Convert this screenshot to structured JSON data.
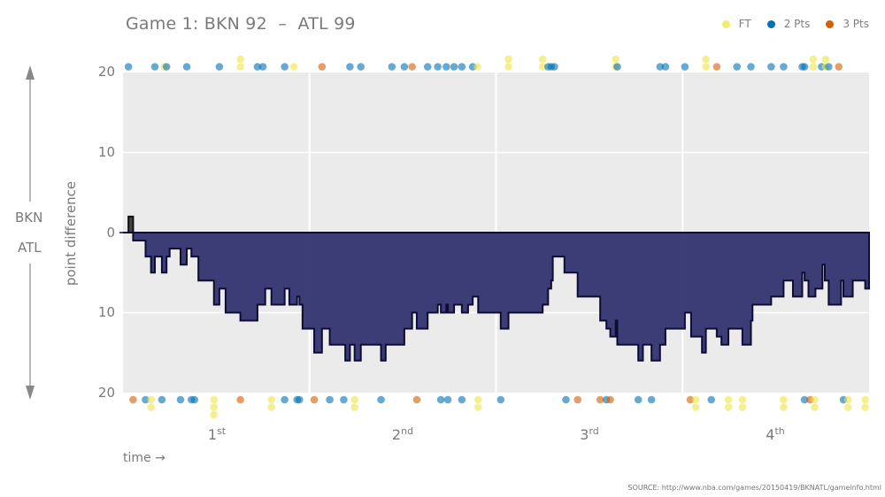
{
  "title": "Game 1: BKN 92  –  ATL 99",
  "legend": [
    {
      "label": "FT",
      "color": "#f0e442"
    },
    {
      "label": "2 Pts",
      "color": "#0072b2"
    },
    {
      "label": "3 Pts",
      "color": "#d55e00"
    }
  ],
  "axis": {
    "ylabel": "point difference",
    "yticks": [
      "20",
      "10",
      "0",
      "10",
      "20"
    ],
    "team_top": "BKN",
    "team_bottom": "ATL",
    "xlabel": "time →",
    "quarters": [
      {
        "num": "1",
        "suffix": "st"
      },
      {
        "num": "2",
        "suffix": "nd"
      },
      {
        "num": "3",
        "suffix": "rd"
      },
      {
        "num": "4",
        "suffix": "th"
      }
    ]
  },
  "source": "SOURCE: http://www.nba.com/games/20150419/BKNATL/gameinfo.html",
  "colors": {
    "plot_bg": "#ebebeb",
    "grid": "#ffffff",
    "area_atl": "#2d2d6b",
    "area_outline": "#0d0d33",
    "area_bkn": "#444444",
    "ft": "#f0e442",
    "two": "#0072b2",
    "three": "#d55e00"
  },
  "chart_data": {
    "type": "area",
    "title": "Game 1: BKN 92 – ATL 99",
    "xlabel": "time",
    "ylabel": "point difference (BKN positive, ATL negative)",
    "x_unit": "game minutes (0–48)",
    "ylim": [
      -20,
      20
    ],
    "categories": [
      "1st",
      "2nd",
      "3rd",
      "4th"
    ],
    "legend": [
      "FT",
      "2 Pts",
      "3 Pts"
    ],
    "step_series": {
      "name": "score difference",
      "points": [
        [
          0.0,
          0
        ],
        [
          0.35,
          2
        ],
        [
          0.65,
          -1
        ],
        [
          1.45,
          -3
        ],
        [
          1.8,
          -5
        ],
        [
          2.05,
          -3
        ],
        [
          2.5,
          -5
        ],
        [
          2.8,
          -3
        ],
        [
          3.0,
          -2
        ],
        [
          3.7,
          -4
        ],
        [
          4.1,
          -2
        ],
        [
          4.4,
          -3
        ],
        [
          4.85,
          -6
        ],
        [
          5.85,
          -9
        ],
        [
          6.2,
          -7
        ],
        [
          6.6,
          -10
        ],
        [
          7.55,
          -11
        ],
        [
          8.65,
          -9
        ],
        [
          9.15,
          -7
        ],
        [
          9.55,
          -9
        ],
        [
          10.4,
          -7
        ],
        [
          10.7,
          -9
        ],
        [
          11.2,
          -8
        ],
        [
          11.35,
          -9
        ],
        [
          11.55,
          -12
        ],
        [
          12.3,
          -15
        ],
        [
          12.8,
          -12
        ],
        [
          13.3,
          -14
        ],
        [
          14.3,
          -16
        ],
        [
          14.6,
          -14
        ],
        [
          14.9,
          -16
        ],
        [
          15.3,
          -14
        ],
        [
          16.6,
          -16
        ],
        [
          16.9,
          -14
        ],
        [
          18.1,
          -12
        ],
        [
          18.6,
          -10
        ],
        [
          18.9,
          -12
        ],
        [
          19.6,
          -10
        ],
        [
          20.25,
          -9
        ],
        [
          20.45,
          -10
        ],
        [
          20.8,
          -9
        ],
        [
          20.9,
          -10
        ],
        [
          21.3,
          -9
        ],
        [
          21.8,
          -10
        ],
        [
          22.2,
          -9
        ],
        [
          22.5,
          -8
        ],
        [
          22.85,
          -10
        ],
        [
          24.3,
          -12
        ],
        [
          24.8,
          -10
        ],
        [
          27.0,
          -9
        ],
        [
          27.35,
          -7
        ],
        [
          27.55,
          -6
        ],
        [
          27.65,
          -3
        ],
        [
          28.4,
          -5
        ],
        [
          29.25,
          -8
        ],
        [
          30.7,
          -11
        ],
        [
          31.1,
          -12
        ],
        [
          31.35,
          -13
        ],
        [
          31.7,
          -11
        ],
        [
          31.8,
          -14
        ],
        [
          33.15,
          -16
        ],
        [
          33.45,
          -14
        ],
        [
          34.0,
          -16
        ],
        [
          34.55,
          -14
        ],
        [
          34.9,
          -12
        ],
        [
          36.15,
          -10
        ],
        [
          36.55,
          -13
        ],
        [
          37.25,
          -15
        ],
        [
          37.5,
          -12
        ],
        [
          38.2,
          -13
        ],
        [
          38.5,
          -14
        ],
        [
          38.95,
          -12
        ],
        [
          39.85,
          -14
        ],
        [
          40.4,
          -11
        ],
        [
          40.5,
          -9
        ],
        [
          41.7,
          -8
        ],
        [
          42.5,
          -6
        ],
        [
          43.1,
          -8
        ],
        [
          43.7,
          -5
        ],
        [
          43.85,
          -6
        ],
        [
          44.1,
          -8
        ],
        [
          44.55,
          -7
        ],
        [
          45.0,
          -4
        ],
        [
          45.15,
          -6
        ],
        [
          45.4,
          -9
        ],
        [
          46.2,
          -6
        ],
        [
          46.35,
          -8
        ],
        [
          46.95,
          -6
        ],
        [
          47.1,
          -6
        ],
        [
          47.75,
          -7
        ],
        [
          48.0,
          -7
        ]
      ]
    },
    "scoring_events": {
      "BKN": [
        {
          "t": 0.35,
          "type": "2"
        },
        {
          "t": 2.05,
          "type": "2"
        },
        {
          "t": 2.65,
          "type": "FT"
        },
        {
          "t": 2.8,
          "type": "2"
        },
        {
          "t": 4.1,
          "type": "2"
        },
        {
          "t": 6.2,
          "type": "2"
        },
        {
          "t": 7.55,
          "type": "FT",
          "n": 2
        },
        {
          "t": 8.65,
          "type": "2"
        },
        {
          "t": 9.0,
          "type": "2"
        },
        {
          "t": 10.4,
          "type": "2"
        },
        {
          "t": 11.0,
          "type": "FT"
        },
        {
          "t": 12.8,
          "type": "3"
        },
        {
          "t": 14.6,
          "type": "2"
        },
        {
          "t": 15.3,
          "type": "2"
        },
        {
          "t": 17.3,
          "type": "2"
        },
        {
          "t": 18.1,
          "type": "2"
        },
        {
          "t": 18.6,
          "type": "3"
        },
        {
          "t": 19.6,
          "type": "2"
        },
        {
          "t": 20.25,
          "type": "2"
        },
        {
          "t": 20.8,
          "type": "2"
        },
        {
          "t": 21.3,
          "type": "2"
        },
        {
          "t": 21.8,
          "type": "2"
        },
        {
          "t": 22.5,
          "type": "2"
        },
        {
          "t": 22.8,
          "type": "FT"
        },
        {
          "t": 24.8,
          "type": "FT",
          "n": 2
        },
        {
          "t": 27.0,
          "type": "FT",
          "n": 2
        },
        {
          "t": 27.35,
          "type": "2"
        },
        {
          "t": 27.55,
          "type": "2"
        },
        {
          "t": 27.75,
          "type": "2"
        },
        {
          "t": 31.7,
          "type": "FT",
          "n": 2
        },
        {
          "t": 31.8,
          "type": "2"
        },
        {
          "t": 34.55,
          "type": "2"
        },
        {
          "t": 34.9,
          "type": "2"
        },
        {
          "t": 36.15,
          "type": "2"
        },
        {
          "t": 37.5,
          "type": "FT",
          "n": 2
        },
        {
          "t": 38.2,
          "type": "3"
        },
        {
          "t": 39.5,
          "type": "2"
        },
        {
          "t": 40.4,
          "type": "2"
        },
        {
          "t": 41.7,
          "type": "2"
        },
        {
          "t": 42.5,
          "type": "2"
        },
        {
          "t": 43.7,
          "type": "2"
        },
        {
          "t": 43.85,
          "type": "2"
        },
        {
          "t": 44.4,
          "type": "FT",
          "n": 2
        },
        {
          "t": 44.95,
          "type": "2"
        },
        {
          "t": 45.2,
          "type": "FT",
          "n": 2
        },
        {
          "t": 45.4,
          "type": "2"
        },
        {
          "t": 46.05,
          "type": "3"
        }
      ],
      "ATL": [
        {
          "t": 0.65,
          "type": "3"
        },
        {
          "t": 1.45,
          "type": "2"
        },
        {
          "t": 1.8,
          "type": "FT",
          "n": 2
        },
        {
          "t": 2.5,
          "type": "2"
        },
        {
          "t": 3.7,
          "type": "2"
        },
        {
          "t": 4.4,
          "type": "2"
        },
        {
          "t": 4.6,
          "type": "2"
        },
        {
          "t": 5.85,
          "type": "FT",
          "n": 3
        },
        {
          "t": 7.55,
          "type": "3"
        },
        {
          "t": 9.55,
          "type": "FT",
          "n": 2
        },
        {
          "t": 10.4,
          "type": "2"
        },
        {
          "t": 11.2,
          "type": "2"
        },
        {
          "t": 11.35,
          "type": "2"
        },
        {
          "t": 12.3,
          "type": "3"
        },
        {
          "t": 13.3,
          "type": "2"
        },
        {
          "t": 14.2,
          "type": "2"
        },
        {
          "t": 14.9,
          "type": "FT",
          "n": 2
        },
        {
          "t": 16.6,
          "type": "2"
        },
        {
          "t": 18.9,
          "type": "3"
        },
        {
          "t": 20.45,
          "type": "2"
        },
        {
          "t": 20.9,
          "type": "2"
        },
        {
          "t": 21.8,
          "type": "2"
        },
        {
          "t": 22.85,
          "type": "FT",
          "n": 2
        },
        {
          "t": 24.3,
          "type": "2"
        },
        {
          "t": 28.5,
          "type": "2"
        },
        {
          "t": 29.25,
          "type": "3"
        },
        {
          "t": 30.7,
          "type": "3"
        },
        {
          "t": 31.1,
          "type": "2"
        },
        {
          "t": 31.35,
          "type": "3"
        },
        {
          "t": 33.15,
          "type": "2"
        },
        {
          "t": 34.0,
          "type": "2"
        },
        {
          "t": 36.5,
          "type": "3"
        },
        {
          "t": 36.85,
          "type": "FT",
          "n": 2
        },
        {
          "t": 37.85,
          "type": "2"
        },
        {
          "t": 38.95,
          "type": "FT",
          "n": 2
        },
        {
          "t": 39.85,
          "type": "FT",
          "n": 2
        },
        {
          "t": 42.5,
          "type": "FT",
          "n": 2
        },
        {
          "t": 43.85,
          "type": "2"
        },
        {
          "t": 44.2,
          "type": "3"
        },
        {
          "t": 44.5,
          "type": "FT",
          "n": 2
        },
        {
          "t": 46.35,
          "type": "2"
        },
        {
          "t": 46.65,
          "type": "FT",
          "n": 2
        },
        {
          "t": 47.75,
          "type": "FT",
          "n": 2
        }
      ]
    }
  }
}
